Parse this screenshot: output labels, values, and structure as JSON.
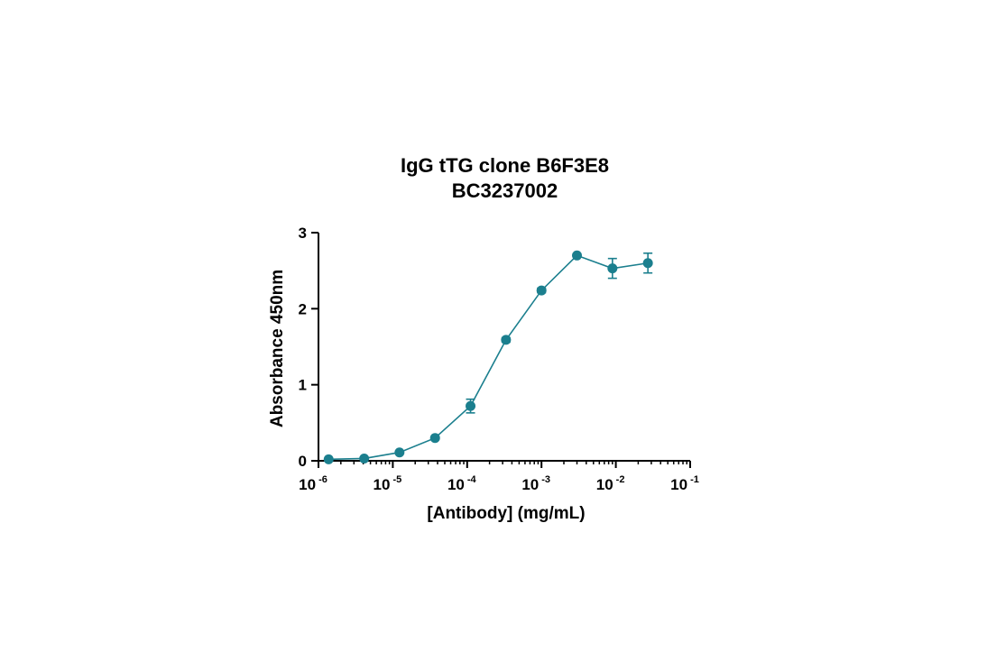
{
  "chart_data": {
    "type": "line",
    "title": "IgG tTG clone B6F3E8",
    "subtitle": "BC3237002",
    "xlabel": "[Antibody] (mg/mL)",
    "ylabel": "Absorbance 450nm",
    "xscale": "log",
    "xlim": [
      1e-06,
      0.1
    ],
    "ylim": [
      0,
      3
    ],
    "grid": false,
    "legend": "none",
    "color": "#1b7f8e",
    "x_ticks": [
      {
        "base": "10",
        "exp": "-6"
      },
      {
        "base": "10",
        "exp": "-5"
      },
      {
        "base": "10",
        "exp": "-4"
      },
      {
        "base": "10",
        "exp": "-3"
      },
      {
        "base": "10",
        "exp": "-2"
      },
      {
        "base": "10",
        "exp": "-1"
      }
    ],
    "y_ticks": [
      "0",
      "1",
      "2",
      "3"
    ],
    "series": [
      {
        "x": [
          1.37e-06,
          4.12e-06,
          1.23e-05,
          3.7e-05,
          0.000111,
          0.000333,
          0.001,
          0.003,
          0.009,
          0.027
        ],
        "y": [
          0.02,
          0.03,
          0.11,
          0.3,
          0.72,
          1.59,
          2.24,
          2.7,
          2.53,
          2.6
        ],
        "err": [
          0.0,
          0.0,
          0.01,
          0.01,
          0.09,
          0.03,
          0.03,
          0.02,
          0.13,
          0.13
        ]
      }
    ]
  }
}
